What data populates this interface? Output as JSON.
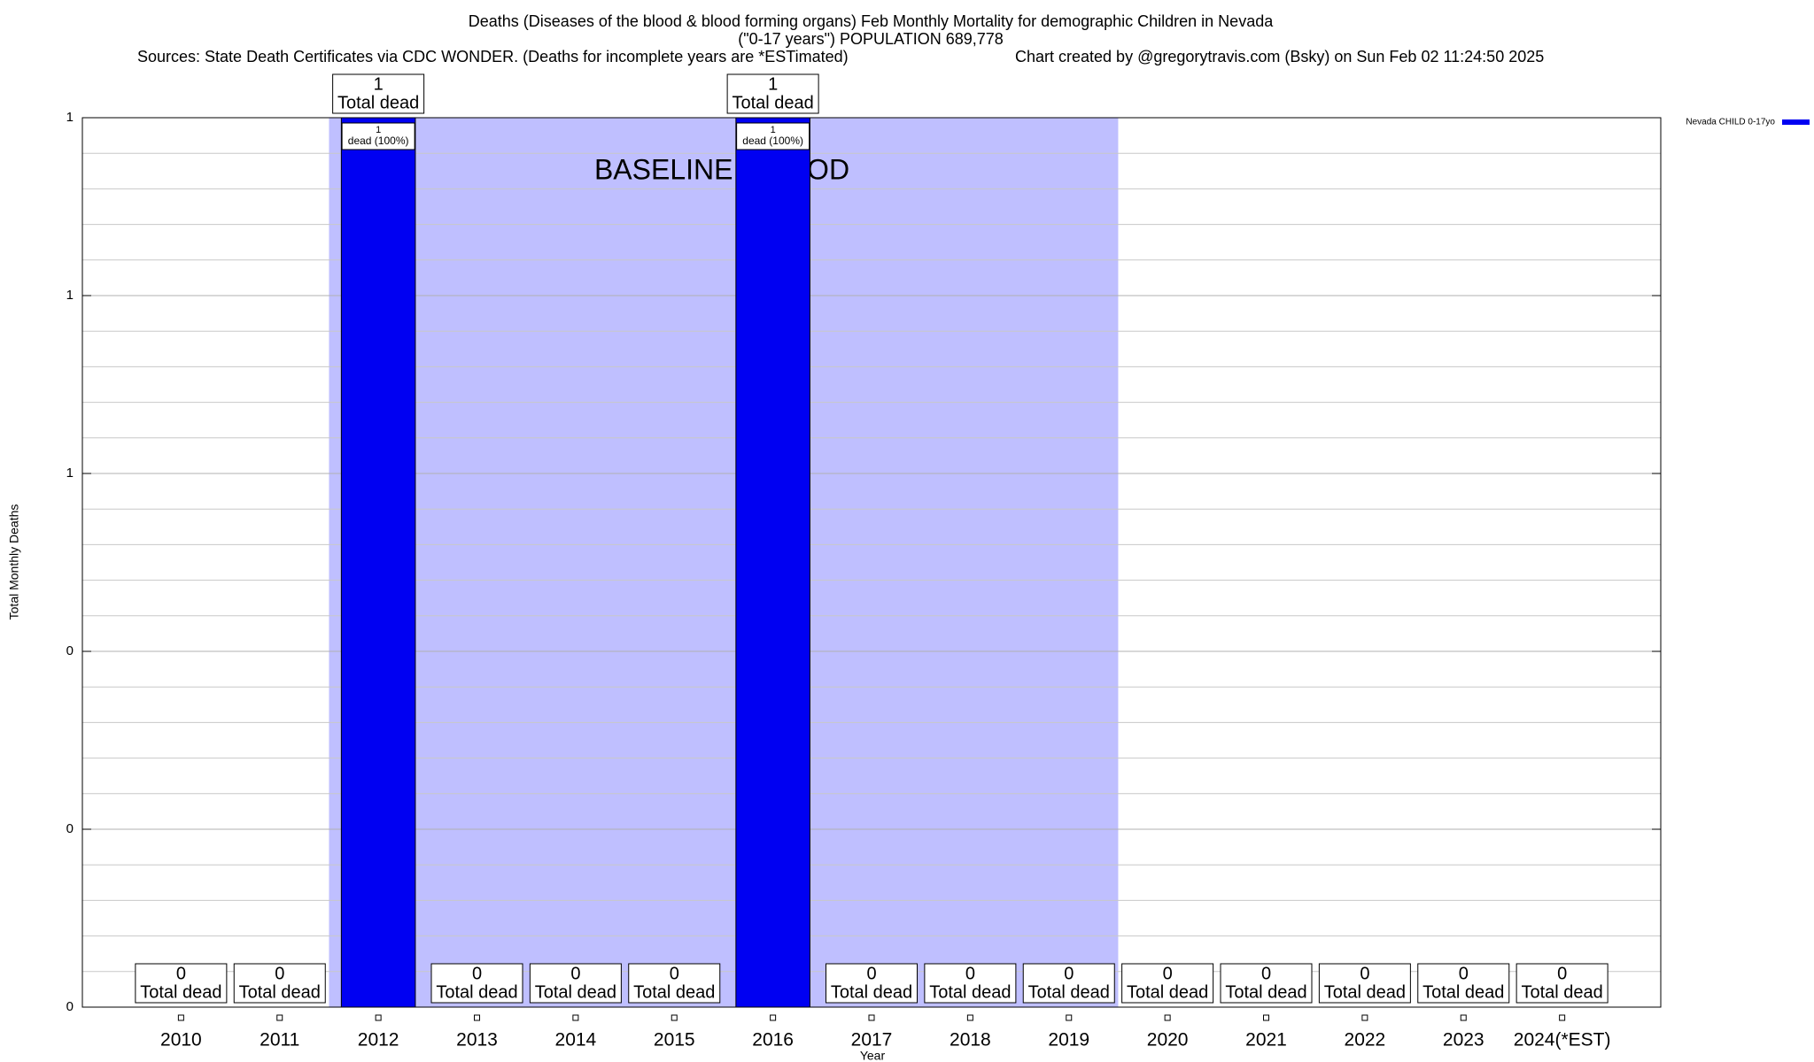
{
  "chart_data": {
    "type": "bar",
    "title": "Deaths (Diseases of the blood & blood forming organs) Feb Monthly Mortality for demographic Children in Nevada",
    "subtitle": "(\"0-17 years\") POPULATION 689,778",
    "sources": "Sources: State Death Certificates via CDC WONDER. (Deaths for incomplete years are *ESTimated)",
    "credit": "Chart created by @gregorytravis.com (Bsky) on Sun Feb 02 11:24:50 2025",
    "xlabel": "Year",
    "ylabel": "Total Monthly Deaths",
    "categories": [
      "2010",
      "2011",
      "2012",
      "2013",
      "2014",
      "2015",
      "2016",
      "2017",
      "2018",
      "2019",
      "2020",
      "2021",
      "2022",
      "2023",
      "2024(*EST)"
    ],
    "series": [
      {
        "name": "Nevada CHILD 0-17yo",
        "color": "#0000f2",
        "values": [
          0,
          0,
          1,
          0,
          0,
          0,
          1,
          0,
          0,
          0,
          0,
          0,
          0,
          0,
          0
        ]
      }
    ],
    "total_label": "Total dead",
    "bar_label": "dead (100%)",
    "baseline": {
      "label": "BASELINE PERIOD",
      "start": "2012",
      "end": "2019",
      "color": "#bfbfff"
    },
    "ylim": [
      0,
      1
    ],
    "yticks": [
      0,
      {
        "value": 0.2,
        "label": "0"
      },
      {
        "value": 0.4,
        "label": "0"
      },
      {
        "value": 0.6,
        "label": "1"
      },
      {
        "value": 0.8,
        "label": "1"
      },
      1
    ],
    "minor_yticks": [
      0.04,
      0.08,
      0.12,
      0.16,
      0.24,
      0.28,
      0.32,
      0.36,
      0.44,
      0.48,
      0.52,
      0.56,
      0.64,
      0.68,
      0.72,
      0.76,
      0.84,
      0.88,
      0.92,
      0.96
    ],
    "grid": true,
    "legend": "top-right"
  }
}
